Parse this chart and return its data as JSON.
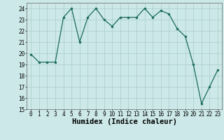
{
  "x": [
    0,
    1,
    2,
    3,
    4,
    5,
    6,
    7,
    8,
    9,
    10,
    11,
    12,
    13,
    14,
    15,
    16,
    17,
    18,
    19,
    20,
    21,
    22,
    23
  ],
  "y": [
    19.9,
    19.2,
    19.2,
    19.2,
    23.2,
    24.0,
    21.0,
    23.2,
    24.0,
    23.0,
    22.4,
    23.2,
    23.2,
    23.2,
    24.0,
    23.2,
    23.8,
    23.5,
    22.2,
    21.5,
    19.0,
    15.5,
    17.0,
    18.5
  ],
  "xlabel": "Humidex (Indice chaleur)",
  "ylim": [
    15,
    24.5
  ],
  "xlim": [
    -0.5,
    23.5
  ],
  "yticks": [
    15,
    16,
    17,
    18,
    19,
    20,
    21,
    22,
    23,
    24
  ],
  "xticks": [
    0,
    1,
    2,
    3,
    4,
    5,
    6,
    7,
    8,
    9,
    10,
    11,
    12,
    13,
    14,
    15,
    16,
    17,
    18,
    19,
    20,
    21,
    22,
    23
  ],
  "line_color": "#1a6b5a",
  "marker_color": "#1a6b5a",
  "bg_color": "#cce8e8",
  "grid_color": "#aacccc",
  "tick_label_fontsize": 5.5,
  "xlabel_fontsize": 7.5
}
